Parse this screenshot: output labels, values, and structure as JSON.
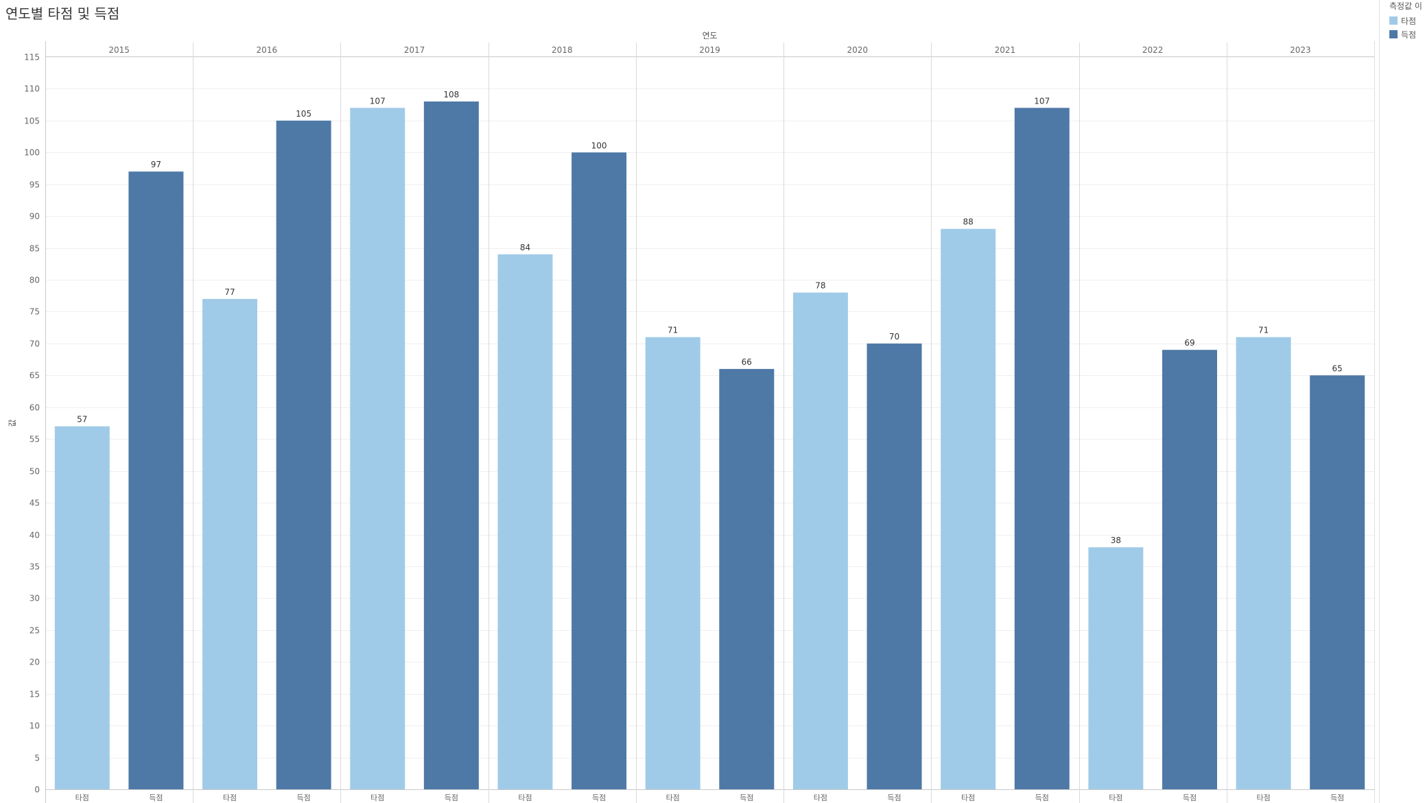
{
  "title": "연도별 타점 및 득점",
  "legend": {
    "title": "측정값 이",
    "items": [
      {
        "label": "타점",
        "color": "#a0cbe8"
      },
      {
        "label": "득점",
        "color": "#4e79a7"
      }
    ]
  },
  "chart_data": {
    "type": "bar",
    "title": "연도별 타점 및 득점",
    "column_header": "연도",
    "ylabel": "값",
    "ylim": [
      0,
      115
    ],
    "y_ticks": [
      0,
      5,
      10,
      15,
      20,
      25,
      30,
      35,
      40,
      45,
      50,
      55,
      60,
      65,
      70,
      75,
      80,
      85,
      90,
      95,
      100,
      105,
      110,
      115
    ],
    "categories": [
      "2015",
      "2016",
      "2017",
      "2018",
      "2019",
      "2020",
      "2021",
      "2022",
      "2023"
    ],
    "series": [
      {
        "name": "타점",
        "color": "#a0cbe8",
        "values": [
          57,
          77,
          107,
          84,
          71,
          78,
          88,
          38,
          71
        ]
      },
      {
        "name": "득점",
        "color": "#4e79a7",
        "values": [
          97,
          105,
          108,
          100,
          66,
          70,
          107,
          69,
          65
        ]
      }
    ],
    "grid": true,
    "legend_position": "top-right"
  }
}
